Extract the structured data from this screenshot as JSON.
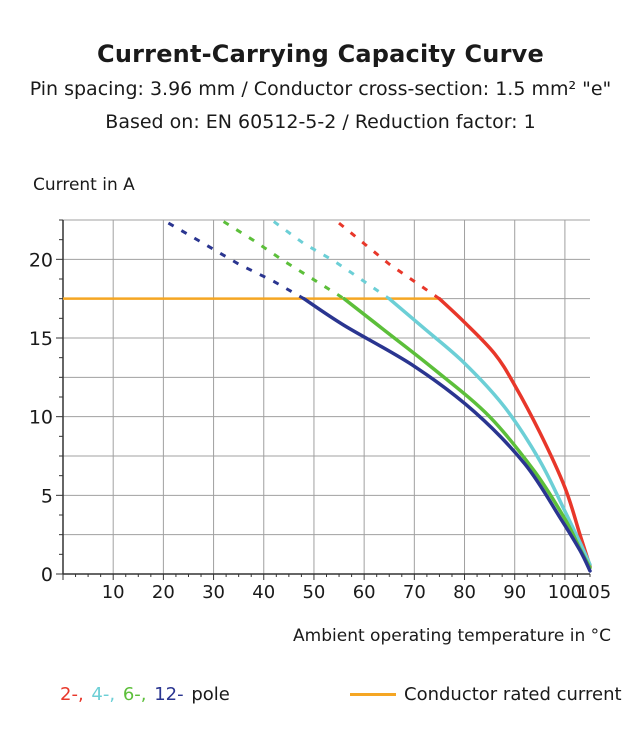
{
  "header": {
    "title": "Current-Carrying Capacity Curve",
    "subtitle1": "Pin spacing: 3.96 mm / Conductor cross-section: 1.5 mm² \"e\"",
    "subtitle2": "Based on: EN 60512-5-2 / Reduction factor: 1"
  },
  "legend": {
    "pole_items": [
      {
        "label": "2-,",
        "color": "#e8372a"
      },
      {
        "label": "4-,",
        "color": "#6ccfd6"
      },
      {
        "label": "6-,",
        "color": "#5cbf3a"
      },
      {
        "label": "12-",
        "color": "#2a3590"
      }
    ],
    "pole_suffix": "pole",
    "rated_label": "Conductor rated current",
    "rated_color": "#f5a623"
  },
  "chart_data": {
    "type": "line",
    "ylabel": "Current in A",
    "xlabel": "Ambient operating temperature in °C",
    "xlim": [
      0,
      105
    ],
    "ylim": [
      0,
      22.5
    ],
    "xticks": [
      10,
      20,
      30,
      40,
      50,
      60,
      70,
      80,
      90,
      100,
      105
    ],
    "yticks": [
      0,
      5,
      10,
      15,
      20
    ],
    "grid": true,
    "rated_current": {
      "name": "Conductor rated current",
      "value": 17.5,
      "x": [
        0,
        75
      ],
      "color": "#f5a623"
    },
    "series": [
      {
        "name": "2-pole",
        "color": "#e8372a",
        "dashed": [
          [
            55,
            22.3
          ],
          [
            60,
            21.0
          ],
          [
            65,
            19.7
          ],
          [
            70,
            18.6
          ],
          [
            75,
            17.5
          ]
        ],
        "values": [
          [
            75,
            17.5
          ],
          [
            80,
            16.0
          ],
          [
            86,
            14.0
          ],
          [
            90,
            12.0
          ],
          [
            95,
            9.0
          ],
          [
            100,
            5.5
          ],
          [
            103,
            2.5
          ],
          [
            105,
            0.5
          ]
        ]
      },
      {
        "name": "4-pole",
        "color": "#6ccfd6",
        "dashed": [
          [
            42,
            22.4
          ],
          [
            48,
            21.0
          ],
          [
            54,
            19.9
          ],
          [
            60,
            18.6
          ],
          [
            65,
            17.5
          ]
        ],
        "values": [
          [
            65,
            17.5
          ],
          [
            72,
            15.6
          ],
          [
            80,
            13.4
          ],
          [
            88,
            10.6
          ],
          [
            95,
            7.2
          ],
          [
            100,
            4.0
          ],
          [
            103,
            2.0
          ],
          [
            105,
            0.6
          ]
        ]
      },
      {
        "name": "6-pole",
        "color": "#5cbf3a",
        "dashed": [
          [
            32,
            22.4
          ],
          [
            38,
            21.2
          ],
          [
            44,
            19.9
          ],
          [
            50,
            18.7
          ],
          [
            56,
            17.5
          ]
        ],
        "values": [
          [
            56,
            17.5
          ],
          [
            64,
            15.5
          ],
          [
            74,
            13.0
          ],
          [
            85,
            10.0
          ],
          [
            94,
            6.5
          ],
          [
            100,
            3.5
          ],
          [
            103,
            1.6
          ],
          [
            105,
            0.4
          ]
        ]
      },
      {
        "name": "12-pole",
        "color": "#2a3590",
        "dashed": [
          [
            21,
            22.3
          ],
          [
            27,
            21.2
          ],
          [
            35,
            19.7
          ],
          [
            42,
            18.6
          ],
          [
            48,
            17.5
          ]
        ],
        "values": [
          [
            48,
            17.5
          ],
          [
            56,
            15.8
          ],
          [
            70,
            13.2
          ],
          [
            82,
            10.3
          ],
          [
            92,
            7.0
          ],
          [
            99,
            3.6
          ],
          [
            103,
            1.5
          ],
          [
            105,
            0.2
          ]
        ]
      }
    ]
  }
}
